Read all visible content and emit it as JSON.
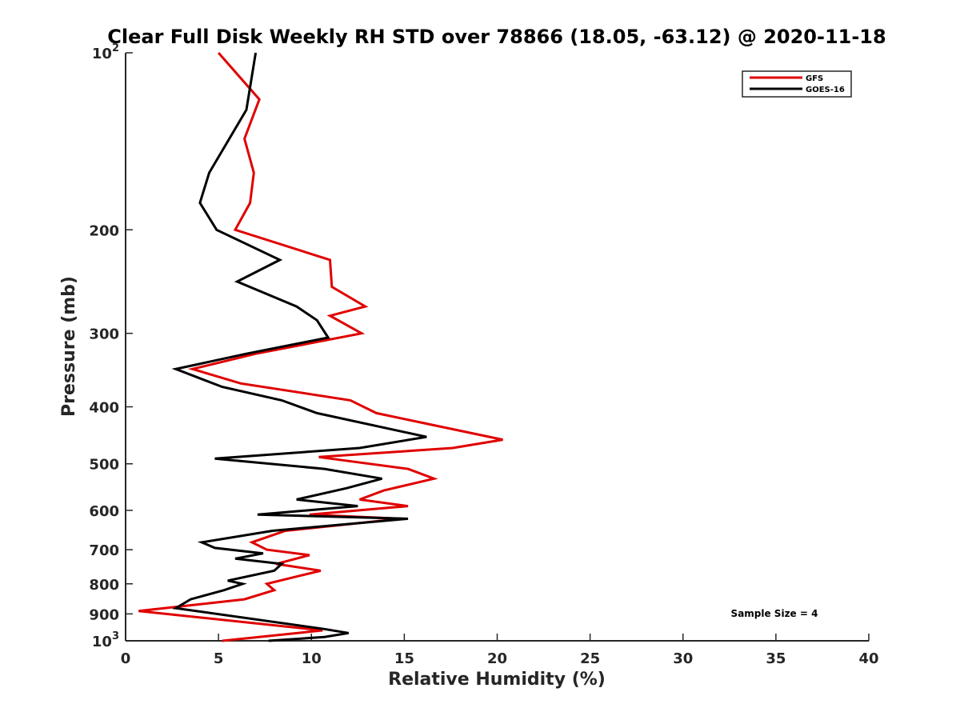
{
  "chart_data": {
    "type": "line",
    "title": "Clear Full Disk Weekly RH STD over 78866 (18.05, -63.12) @ 2020-11-18",
    "xlabel": "Relative Humidity (%)",
    "ylabel": "Pressure (mb)",
    "xlim": [
      0,
      40
    ],
    "ylim": [
      100,
      1000
    ],
    "yscale": "log",
    "y_reversed": true,
    "grid": false,
    "legend_position": "top-right",
    "x_ticks": [
      "0",
      "5",
      "10",
      "15",
      "20",
      "25",
      "30",
      "35",
      "40"
    ],
    "y_ticks": [
      {
        "value": 100,
        "base": "10",
        "exp": "2"
      },
      {
        "value": 200,
        "label": "200"
      },
      {
        "value": 300,
        "label": "300"
      },
      {
        "value": 400,
        "label": "400"
      },
      {
        "value": 500,
        "label": "500"
      },
      {
        "value": 600,
        "label": "600"
      },
      {
        "value": 700,
        "label": "700"
      },
      {
        "value": 800,
        "label": "800"
      },
      {
        "value": 900,
        "label": "900"
      },
      {
        "value": 1000,
        "base": "10",
        "exp": "3"
      }
    ],
    "annotation": "Sample Size = 4",
    "series": [
      {
        "name": "GFS",
        "color": "#e00000",
        "points": [
          [
            5.0,
            100
          ],
          [
            7.2,
            120
          ],
          [
            6.4,
            140
          ],
          [
            6.9,
            160
          ],
          [
            6.7,
            180
          ],
          [
            5.9,
            200
          ],
          [
            11.0,
            225
          ],
          [
            11.1,
            250
          ],
          [
            12.9,
            270
          ],
          [
            11.0,
            280
          ],
          [
            12.7,
            300
          ],
          [
            7.0,
            325
          ],
          [
            3.6,
            345
          ],
          [
            6.2,
            365
          ],
          [
            12.1,
            390
          ],
          [
            13.5,
            410
          ],
          [
            20.3,
            455
          ],
          [
            17.6,
            470
          ],
          [
            10.4,
            487
          ],
          [
            15.2,
            510
          ],
          [
            16.6,
            530
          ],
          [
            13.9,
            555
          ],
          [
            12.6,
            575
          ],
          [
            15.2,
            590
          ],
          [
            9.9,
            610
          ],
          [
            14.8,
            620
          ],
          [
            8.6,
            650
          ],
          [
            6.8,
            680
          ],
          [
            7.6,
            700
          ],
          [
            9.9,
            715
          ],
          [
            8.1,
            740
          ],
          [
            10.5,
            760
          ],
          [
            9.4,
            775
          ],
          [
            7.6,
            800
          ],
          [
            8.0,
            820
          ],
          [
            6.4,
            850
          ],
          [
            0.7,
            890
          ],
          [
            10.6,
            960
          ],
          [
            5.2,
            1000
          ]
        ]
      },
      {
        "name": "GOES-16",
        "color": "#000000",
        "points": [
          [
            7.0,
            100
          ],
          [
            6.5,
            125
          ],
          [
            4.5,
            160
          ],
          [
            4.0,
            180
          ],
          [
            4.9,
            200
          ],
          [
            8.3,
            225
          ],
          [
            6.0,
            245
          ],
          [
            9.2,
            270
          ],
          [
            10.3,
            285
          ],
          [
            10.9,
            305
          ],
          [
            6.5,
            325
          ],
          [
            2.7,
            345
          ],
          [
            5.2,
            370
          ],
          [
            8.4,
            390
          ],
          [
            10.3,
            410
          ],
          [
            16.2,
            450
          ],
          [
            12.6,
            470
          ],
          [
            4.8,
            490
          ],
          [
            10.7,
            510
          ],
          [
            13.8,
            530
          ],
          [
            11.9,
            550
          ],
          [
            9.2,
            575
          ],
          [
            12.5,
            590
          ],
          [
            7.1,
            610
          ],
          [
            15.2,
            620
          ],
          [
            7.9,
            650
          ],
          [
            4.1,
            680
          ],
          [
            4.8,
            695
          ],
          [
            7.4,
            710
          ],
          [
            5.9,
            725
          ],
          [
            8.4,
            740
          ],
          [
            8.0,
            760
          ],
          [
            5.5,
            790
          ],
          [
            6.3,
            800
          ],
          [
            5.3,
            820
          ],
          [
            3.5,
            850
          ],
          [
            2.7,
            880
          ],
          [
            10.7,
            955
          ],
          [
            12.0,
            970
          ],
          [
            10.7,
            985
          ],
          [
            7.7,
            1000
          ]
        ]
      }
    ]
  }
}
